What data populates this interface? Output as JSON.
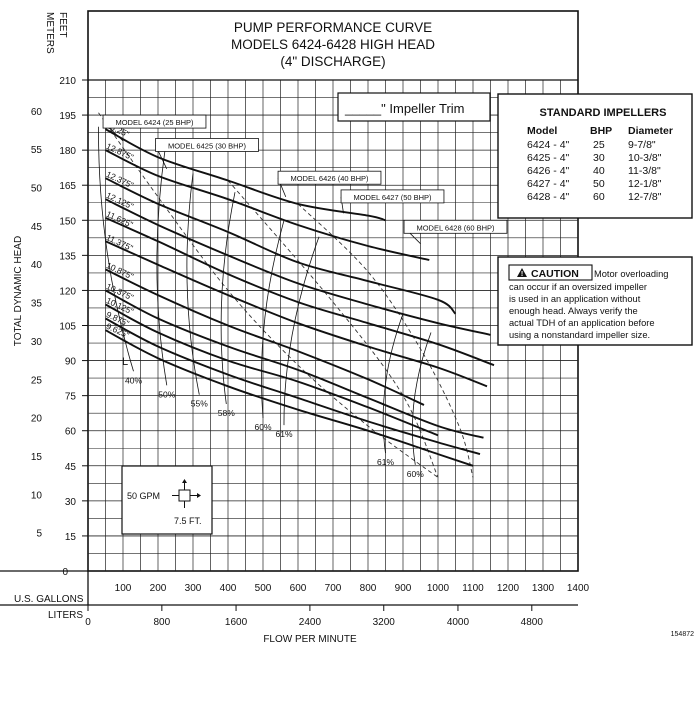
{
  "chart_data": {
    "type": "line",
    "title": [
      "PUMP PERFORMANCE CURVE",
      "MODELS 6424-6428 HIGH HEAD",
      "(4\" DISCHARGE)"
    ],
    "xlabel": "FLOW PER MINUTE",
    "ylabel": "TOTAL DYNAMIC HEAD",
    "x_units": [
      "U.S. GALLONS",
      "LITERS"
    ],
    "y_units": [
      "METERS",
      "FEET"
    ],
    "xlim": [
      0,
      1400
    ],
    "ylim_feet": [
      0,
      210
    ],
    "gpm_ticks": [
      "100",
      "200",
      "300",
      "400",
      "500",
      "600",
      "700",
      "800",
      "900",
      "1000",
      "1100",
      "1200",
      "1300",
      "1400"
    ],
    "liter_ticks": [
      {
        "label": "0",
        "gpm": 0
      },
      {
        "label": "800",
        "gpm": 211
      },
      {
        "label": "1600",
        "gpm": 423
      },
      {
        "label": "2400",
        "gpm": 634
      },
      {
        "label": "3200",
        "gpm": 845
      },
      {
        "label": "4000",
        "gpm": 1057
      },
      {
        "label": "4800",
        "gpm": 1268
      }
    ],
    "feet_ticks": [
      "15",
      "30",
      "45",
      "60",
      "75",
      "90",
      "105",
      "120",
      "135",
      "150",
      "165",
      "180",
      "195",
      "210"
    ],
    "meter_ticks": [
      {
        "label": "0",
        "ft": 0
      },
      {
        "label": "5",
        "ft": 16.4
      },
      {
        "label": "10",
        "ft": 32.8
      },
      {
        "label": "15",
        "ft": 49.2
      },
      {
        "label": "20",
        "ft": 65.6
      },
      {
        "label": "25",
        "ft": 82
      },
      {
        "label": "30",
        "ft": 98.4
      },
      {
        "label": "35",
        "ft": 114.8
      },
      {
        "label": "40",
        "ft": 131.2
      },
      {
        "label": "45",
        "ft": 147.6
      },
      {
        "label": "50",
        "ft": 164
      },
      {
        "label": "55",
        "ft": 180.4
      },
      {
        "label": "60",
        "ft": 196.8
      }
    ],
    "grid": true,
    "series": [
      {
        "name": "13.25\"",
        "dashed": false,
        "points": [
          [
            50,
            189
          ],
          [
            200,
            177
          ],
          [
            400,
            167
          ],
          [
            600,
            157
          ],
          [
            800,
            152
          ],
          [
            850,
            150
          ]
        ]
      },
      {
        "name": "12.875\"",
        "dashed": false,
        "points": [
          [
            50,
            180
          ],
          [
            200,
            169
          ],
          [
            400,
            159
          ],
          [
            600,
            148
          ],
          [
            800,
            139
          ],
          [
            975,
            133
          ]
        ]
      },
      {
        "name": "12.375\"",
        "dashed": false,
        "points": [
          [
            50,
            168
          ],
          [
            200,
            157
          ],
          [
            400,
            145
          ],
          [
            600,
            132
          ],
          [
            800,
            124
          ],
          [
            1000,
            116
          ],
          [
            1050,
            110
          ]
        ]
      },
      {
        "name": "12.125\"",
        "dashed": false,
        "points": [
          [
            50,
            159
          ],
          [
            200,
            148
          ],
          [
            400,
            135
          ],
          [
            600,
            123
          ],
          [
            800,
            114
          ],
          [
            1000,
            106
          ],
          [
            1150,
            101
          ]
        ]
      },
      {
        "name": "11.625\"",
        "dashed": false,
        "points": [
          [
            50,
            151
          ],
          [
            200,
            141
          ],
          [
            400,
            127
          ],
          [
            600,
            115
          ],
          [
            800,
            106
          ],
          [
            1000,
            97
          ],
          [
            1160,
            88
          ]
        ]
      },
      {
        "name": "11.375\"",
        "dashed": false,
        "points": [
          [
            50,
            141
          ],
          [
            200,
            131
          ],
          [
            400,
            118
          ],
          [
            600,
            106
          ],
          [
            800,
            96
          ],
          [
            1000,
            87
          ],
          [
            1140,
            79
          ]
        ]
      },
      {
        "name": "10.875\"",
        "dashed": false,
        "points": [
          [
            50,
            129
          ],
          [
            200,
            118
          ],
          [
            400,
            105
          ],
          [
            600,
            94
          ],
          [
            800,
            82
          ],
          [
            960,
            71
          ]
        ]
      },
      {
        "name": "10.375\"",
        "dashed": false,
        "points": [
          [
            50,
            120
          ],
          [
            200,
            108
          ],
          [
            400,
            96
          ],
          [
            600,
            86
          ],
          [
            800,
            74
          ],
          [
            1000,
            62
          ],
          [
            1130,
            57
          ]
        ]
      },
      {
        "name": "10.125\"",
        "dashed": false,
        "points": [
          [
            50,
            114
          ],
          [
            200,
            102
          ],
          [
            400,
            90
          ],
          [
            600,
            81
          ],
          [
            800,
            70
          ],
          [
            1000,
            58
          ]
        ]
      },
      {
        "name": "9.875\"",
        "dashed": false,
        "points": [
          [
            50,
            108
          ],
          [
            200,
            96
          ],
          [
            400,
            84
          ],
          [
            600,
            74
          ],
          [
            800,
            64
          ],
          [
            1000,
            55
          ],
          [
            1120,
            50
          ]
        ]
      },
      {
        "name": "9.625\"",
        "dashed": false,
        "points": [
          [
            50,
            103
          ],
          [
            200,
            91
          ],
          [
            400,
            79
          ],
          [
            600,
            69
          ],
          [
            800,
            60
          ],
          [
            1000,
            50
          ],
          [
            1100,
            45
          ]
        ]
      }
    ],
    "model_labels": [
      {
        "text": "MODEL 6424 (25 BHP)",
        "x": 190,
        "y": 192,
        "ax": 100,
        "ay": 184
      },
      {
        "text": "MODEL 6425 (30 BHP)",
        "x": 340,
        "y": 182,
        "ax": 225,
        "ay": 172
      },
      {
        "text": "MODEL 6426 (40 BHP)",
        "x": 690,
        "y": 168,
        "ax": 565,
        "ay": 160
      },
      {
        "text": "MODEL 6427 (50 BHP)",
        "x": 870,
        "y": 160,
        "ax": 730,
        "ay": 153
      },
      {
        "text": "MODEL 6428 (60 BHP)",
        "x": 1050,
        "y": 147,
        "ax": 950,
        "ay": 140
      }
    ],
    "efficiency_labels": [
      {
        "text": "40%",
        "x": 130,
        "y": 82
      },
      {
        "text": "50%",
        "x": 225,
        "y": 76
      },
      {
        "text": "55%",
        "x": 318,
        "y": 72
      },
      {
        "text": "58%",
        "x": 395,
        "y": 68
      },
      {
        "text": "60%",
        "x": 500,
        "y": 62
      },
      {
        "text": "61%",
        "x": 560,
        "y": 59
      },
      {
        "text": "61%",
        "x": 850,
        "y": 47
      },
      {
        "text": "60%",
        "x": 935,
        "y": 42
      }
    ],
    "trim_label": "_____\" Impeller Trim",
    "impeller_table": {
      "title": "STANDARD IMPELLERS",
      "headers": [
        "Model",
        "BHP",
        "Diameter"
      ],
      "rows": [
        [
          "6424 - 4\"",
          "25",
          "9-7/8\""
        ],
        [
          "6425 - 4\"",
          "30",
          "10-3/8\""
        ],
        [
          "6426 - 4\"",
          "40",
          "11-3/8\""
        ],
        [
          "6427 - 4\"",
          "50",
          "12-1/8\""
        ],
        [
          "6428 - 4\"",
          "60",
          "12-7/8\""
        ]
      ]
    },
    "caution": {
      "label": "CAUTION",
      "lines": [
        "Motor overloading",
        "can occur if an oversized impeller",
        "is used in an application without",
        "enough head. Always verify the",
        "actual TDH of an application before",
        "using a nonstandard impeller size."
      ]
    },
    "scale_legend": {
      "gpm": "50 GPM",
      "ft": "7.5 FT."
    },
    "figure_code": "154872"
  }
}
